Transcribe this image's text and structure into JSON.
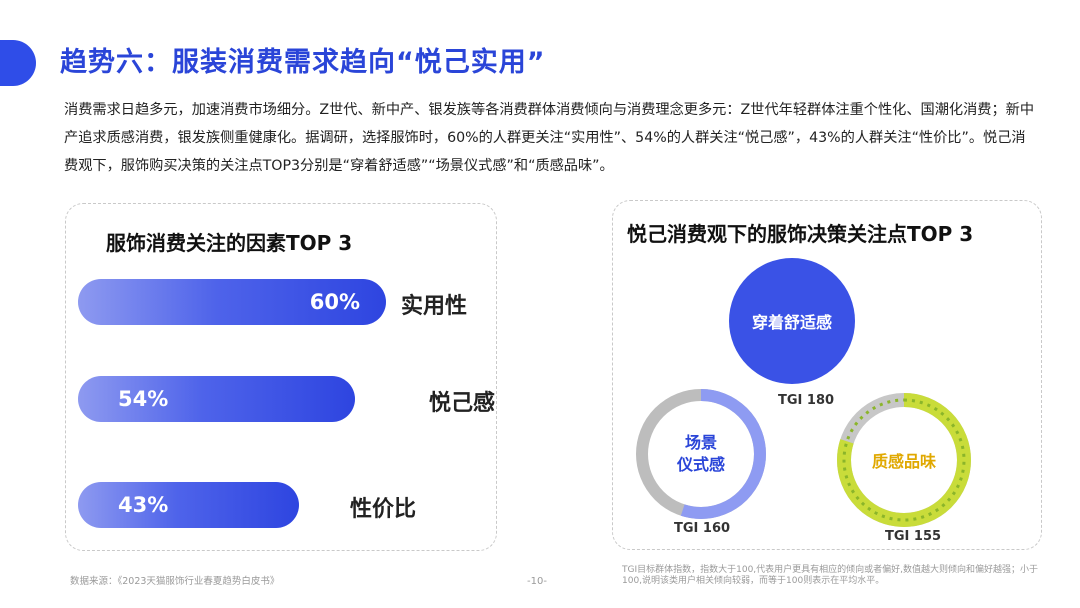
{
  "header": {
    "title": "趋势六：服装消费需求趋向“悦己实用”",
    "accent_color": "#2f4de8"
  },
  "intro_text": "消费需求日趋多元，加速消费市场细分。Z世代、新中产、银发族等各消费群体消费倾向与消费理念更多元：Z世代年轻群体注重个性化、国潮化消费；新中产追求质感消费，银发族侧重健康化。据调研，选择服饰时，60%的人群更关注“实用性”、54%的人群关注“悦己感”，43%的人群关注“性价比”。悦己消费观下，服饰购买决策的关注点TOP3分别是“穿着舒适感”“场景仪式感”和“质感品味”。",
  "chart_data": [
    {
      "type": "bar",
      "title": "服饰消费关注的因素TOP 3",
      "categories": [
        "实用性",
        "悦己感",
        "性价比"
      ],
      "values": [
        60,
        54,
        43
      ],
      "value_labels": [
        "60%",
        "54%",
        "43%"
      ],
      "unit": "%",
      "orientation": "horizontal",
      "color": "#3a52e6"
    },
    {
      "type": "bubble",
      "title": "悦己消费观下的服饰决策关注点TOP 3",
      "categories": [
        "穿着舒适感",
        "场景仪式感",
        "质感品味"
      ],
      "display_labels": [
        "穿着舒适感",
        "场景\n仪式感",
        "质感品味"
      ],
      "values": [
        180,
        160,
        155
      ],
      "value_labels": [
        "TGI 180",
        "TGI 160",
        "TGI 155"
      ],
      "colors": [
        "#3f56e4",
        "#3f56e4",
        "#e0a800"
      ]
    }
  ],
  "footnote": "TGI目标群体指数，指数大于100,代表用户更具有相应的倾向或者偏好,数值越大则倾向和偏好越强；小于100,说明该类用户相关倾向较弱，而等于100则表示在平均水平。",
  "source": "数据来源：《2023天猫服饰行业春夏趋势白皮书》",
  "page_number": "-10-"
}
